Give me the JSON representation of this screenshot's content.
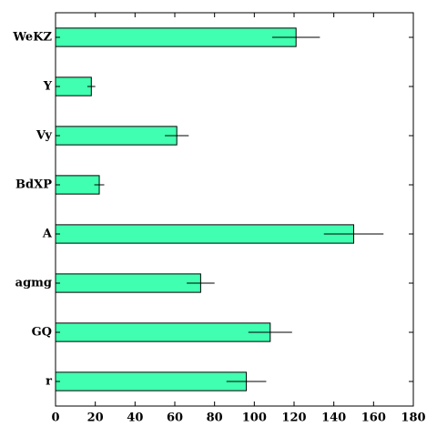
{
  "chart_data": {
    "type": "bar",
    "orientation": "horizontal",
    "title": "",
    "xlabel": "",
    "ylabel": "",
    "categories": [
      "WeKZ",
      "Y",
      "Vy",
      "BdXP",
      "A",
      "agmg",
      "GQ",
      "r"
    ],
    "values": [
      121,
      18,
      61,
      22,
      150,
      73,
      108,
      96
    ],
    "errors": [
      12,
      2,
      6,
      2.5,
      15,
      7,
      11,
      10
    ],
    "xlim": [
      0,
      180
    ],
    "xticks": [
      "0",
      "20",
      "40",
      "60",
      "80",
      "100",
      "120",
      "140",
      "160",
      "180"
    ],
    "grid": false,
    "legend": "none",
    "bar_color": "#40ffb0",
    "edge_color": "#000000"
  }
}
